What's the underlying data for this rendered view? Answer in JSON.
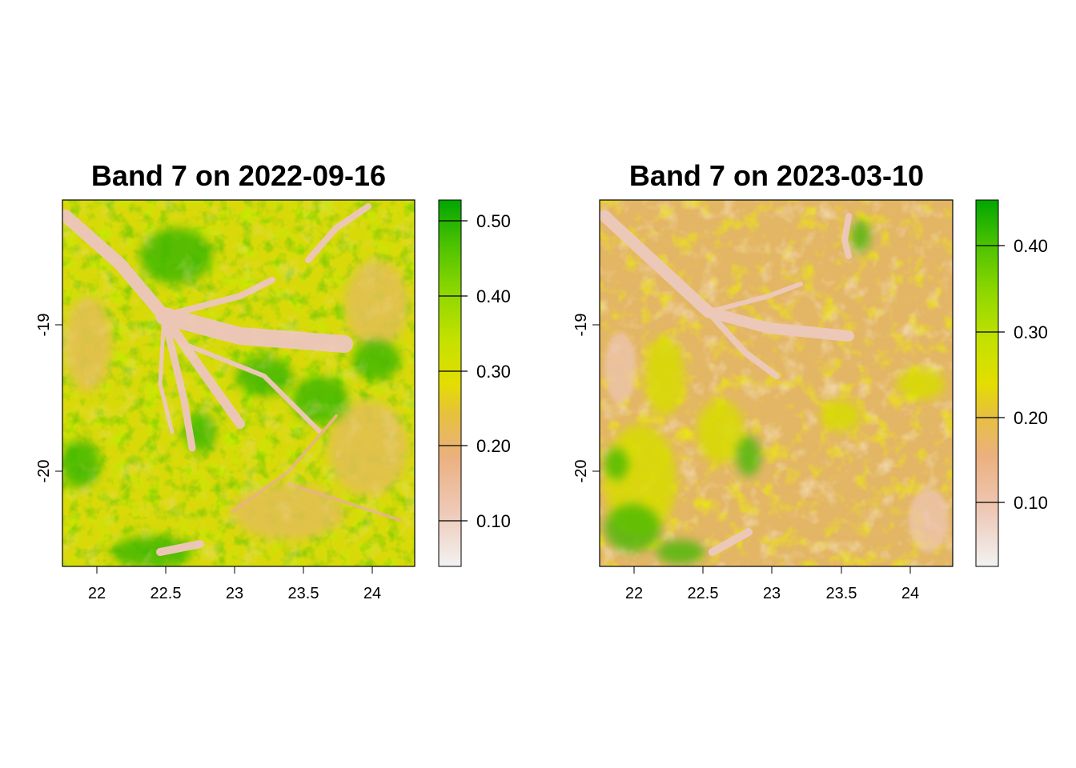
{
  "figure": {
    "panels": [
      {
        "title": "Band 7 on 2022-09-16",
        "x_ticks": [
          "22",
          "22.5",
          "23",
          "23.5",
          "24"
        ],
        "y_ticks": [
          "-19",
          "-20"
        ],
        "legend_ticks": [
          "0.50",
          "0.40",
          "0.30",
          "0.20",
          "0.10"
        ]
      },
      {
        "title": "Band 7 on 2023-03-10",
        "x_ticks": [
          "22",
          "22.5",
          "23",
          "23.5",
          "24"
        ],
        "y_ticks": [
          "-19",
          "-20"
        ],
        "legend_ticks": [
          "0.40",
          "0.30",
          "0.20",
          "0.10"
        ]
      }
    ]
  },
  "chart_data": [
    {
      "type": "heatmap",
      "title": "Band 7 on 2022-09-16",
      "xlabel": "",
      "ylabel": "",
      "xlim": [
        21.75,
        24.3
      ],
      "ylim": [
        -20.65,
        -18.15
      ],
      "x_ticks": [
        22,
        22.5,
        23,
        23.5,
        24
      ],
      "y_ticks": [
        -19,
        -20
      ],
      "value_range": [
        0.04,
        0.53
      ],
      "legend_ticks": [
        0.5,
        0.4,
        0.3,
        0.2,
        0.1
      ],
      "palette": [
        "#f2f2f2",
        "#eec9b7",
        "#ebb07f",
        "#e6c23a",
        "#e3de00",
        "#c3e100",
        "#8ed700",
        "#4bc200",
        "#00a600"
      ]
    },
    {
      "type": "heatmap",
      "title": "Band 7 on 2023-03-10",
      "xlabel": "",
      "ylabel": "",
      "xlim": [
        21.75,
        24.3
      ],
      "ylim": [
        -20.65,
        -18.15
      ],
      "x_ticks": [
        22,
        22.5,
        23,
        23.5,
        24
      ],
      "y_ticks": [
        -19,
        -20
      ],
      "value_range": [
        0.025,
        0.455
      ],
      "legend_ticks": [
        0.4,
        0.3,
        0.2,
        0.1
      ],
      "palette": [
        "#f2f2f2",
        "#eec9b7",
        "#ebb07f",
        "#e6c23a",
        "#e3de00",
        "#c3e100",
        "#8ed700",
        "#4bc200",
        "#00a600"
      ]
    }
  ]
}
